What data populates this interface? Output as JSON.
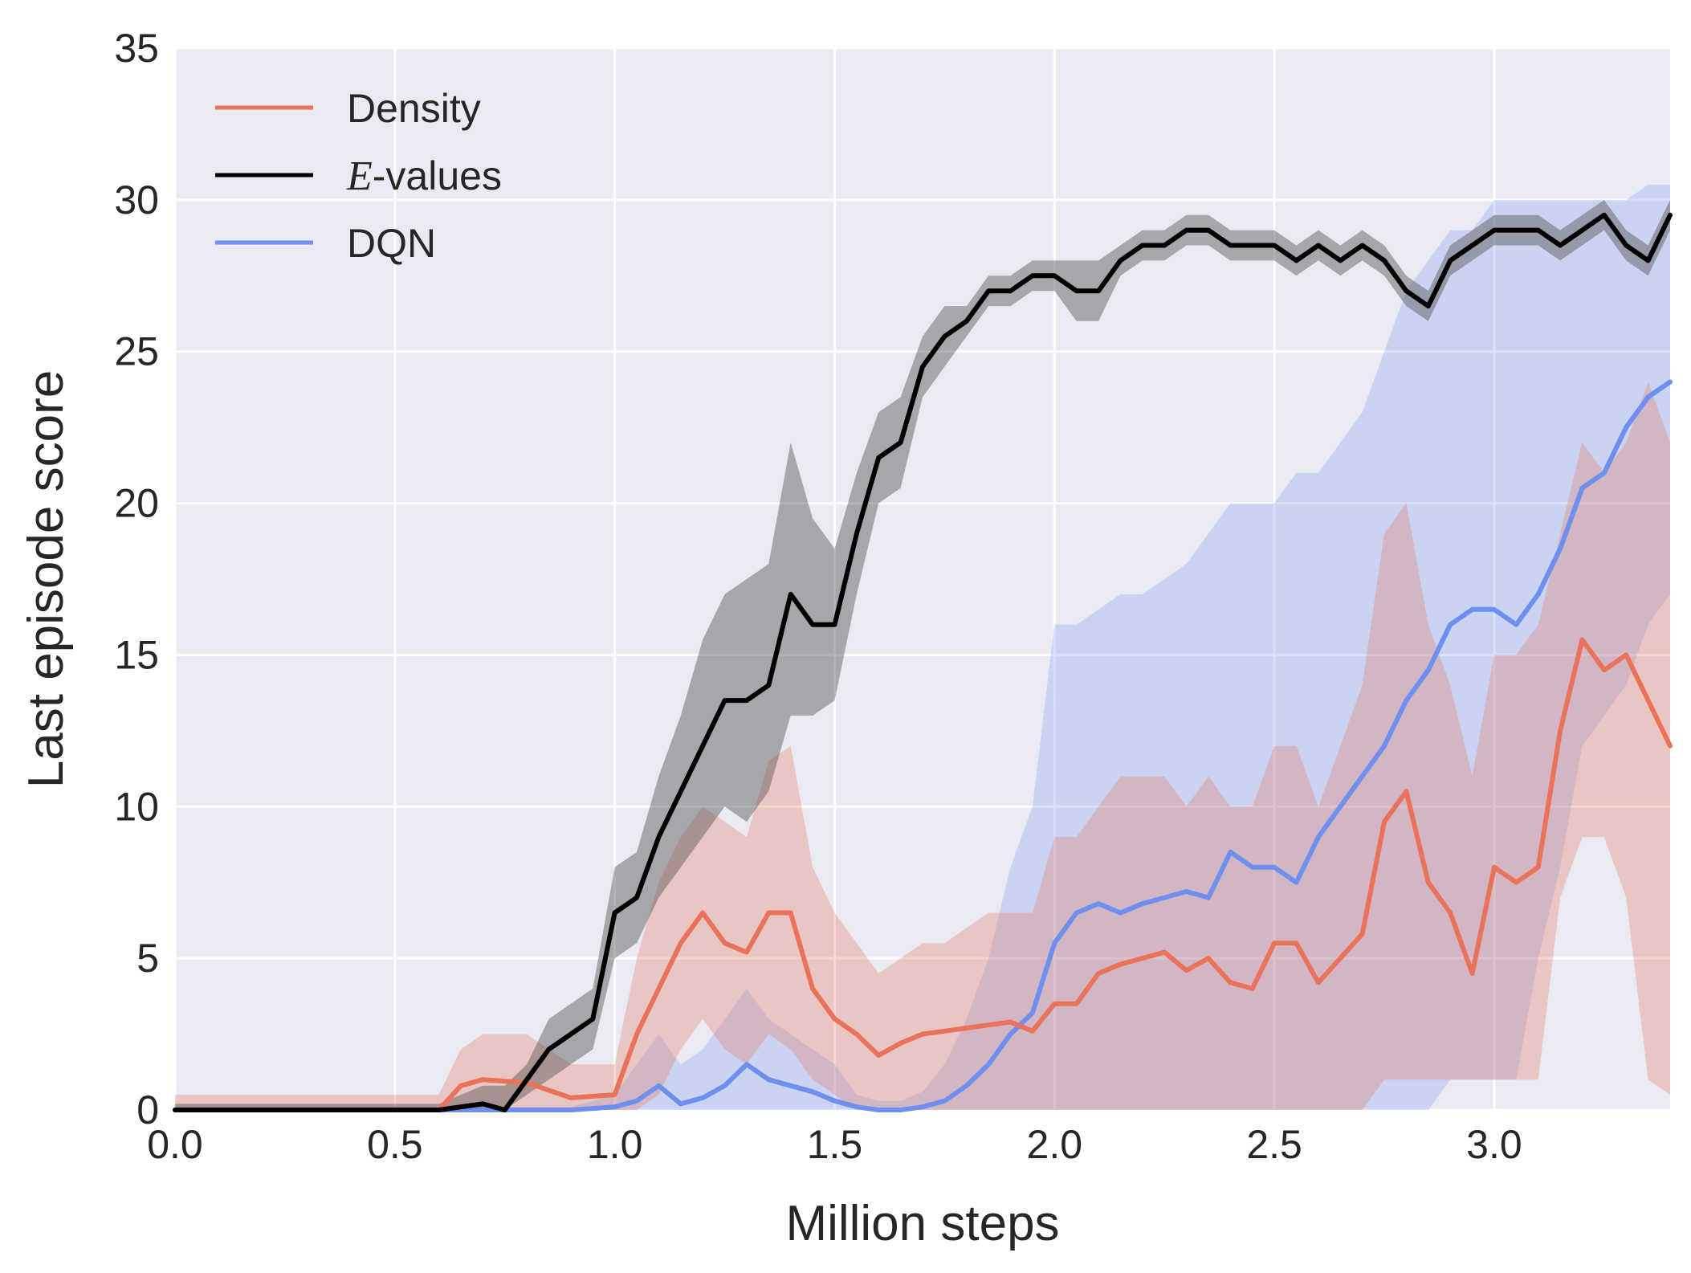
{
  "chart_data": {
    "type": "line",
    "title": "",
    "xlabel": "Million steps",
    "ylabel": "Last episode score",
    "xlim": [
      0.0,
      3.4
    ],
    "ylim": [
      0,
      35
    ],
    "xticks": [
      0.0,
      0.5,
      1.0,
      1.5,
      2.0,
      2.5,
      3.0
    ],
    "xtick_labels": [
      "0.0",
      "0.5",
      "1.0",
      "1.5",
      "2.0",
      "2.5",
      "3.0"
    ],
    "yticks": [
      0,
      5,
      10,
      15,
      20,
      25,
      30,
      35
    ],
    "ytick_labels": [
      "0",
      "5",
      "10",
      "15",
      "20",
      "25",
      "30",
      "35"
    ],
    "grid": true,
    "legend_position": "top-left",
    "series": [
      {
        "name": "Density",
        "label": "Density",
        "color": "#e8735a",
        "band_color": "#e8735a",
        "band_opacity": 0.3,
        "x": [
          0.0,
          0.6,
          0.65,
          0.7,
          0.8,
          0.9,
          1.0,
          1.05,
          1.1,
          1.15,
          1.2,
          1.25,
          1.3,
          1.35,
          1.4,
          1.45,
          1.5,
          1.55,
          1.6,
          1.65,
          1.7,
          1.75,
          1.8,
          1.85,
          1.9,
          1.95,
          2.0,
          2.05,
          2.1,
          2.15,
          2.2,
          2.25,
          2.3,
          2.35,
          2.4,
          2.45,
          2.5,
          2.55,
          2.6,
          2.65,
          2.7,
          2.75,
          2.8,
          2.85,
          2.9,
          2.95,
          3.0,
          3.05,
          3.1,
          3.15,
          3.2,
          3.25,
          3.3,
          3.35,
          3.4
        ],
        "y": [
          0.0,
          0.0,
          0.8,
          1.0,
          0.9,
          0.4,
          0.5,
          2.5,
          4.0,
          5.5,
          6.5,
          5.5,
          5.2,
          6.5,
          6.5,
          4.0,
          3.0,
          2.5,
          1.8,
          2.2,
          2.5,
          2.6,
          2.7,
          2.8,
          2.9,
          2.6,
          3.5,
          3.5,
          4.5,
          4.8,
          5.0,
          5.2,
          4.6,
          5.0,
          4.2,
          4.0,
          5.5,
          5.5,
          4.2,
          5.0,
          5.8,
          9.5,
          10.5,
          7.5,
          6.5,
          4.5,
          8.0,
          7.5,
          8.0,
          12.5,
          15.5,
          14.5,
          15.0,
          13.5,
          12.0
        ],
        "lower": [
          0.0,
          0.0,
          0.0,
          0.0,
          0.0,
          0.0,
          0.0,
          0.0,
          0.5,
          2.0,
          3.0,
          2.0,
          1.5,
          2.5,
          2.0,
          1.0,
          0.5,
          0.0,
          0.0,
          0.0,
          0.0,
          0.0,
          0.0,
          0.0,
          0.0,
          0.0,
          0.0,
          0.0,
          0.0,
          0.0,
          0.0,
          0.0,
          0.0,
          0.0,
          0.0,
          0.0,
          0.0,
          0.0,
          0.0,
          0.0,
          0.0,
          1.0,
          1.0,
          1.0,
          1.0,
          1.0,
          1.0,
          1.0,
          1.0,
          7.0,
          9.0,
          9.0,
          7.0,
          1.0,
          0.5
        ],
        "upper": [
          0.5,
          0.5,
          2.0,
          2.5,
          2.5,
          1.5,
          1.5,
          5.0,
          7.5,
          9.0,
          10.0,
          9.5,
          9.0,
          11.5,
          12.0,
          8.0,
          6.5,
          5.5,
          4.5,
          5.0,
          5.5,
          5.5,
          6.0,
          6.5,
          6.5,
          6.5,
          9.0,
          9.0,
          10.0,
          11.0,
          11.0,
          11.0,
          10.0,
          11.0,
          10.0,
          10.0,
          12.0,
          12.0,
          10.0,
          12.0,
          14.0,
          19.0,
          20.0,
          16.0,
          14.0,
          11.0,
          15.0,
          15.0,
          16.0,
          19.0,
          22.0,
          21.0,
          22.0,
          24.0,
          22.0
        ]
      },
      {
        "name": "E-values",
        "label": "-values",
        "label_math": "E",
        "color": "#000000",
        "band_color": "#555555",
        "band_opacity": 0.45,
        "x": [
          0.0,
          0.6,
          0.7,
          0.75,
          0.8,
          0.85,
          0.9,
          0.95,
          1.0,
          1.05,
          1.1,
          1.15,
          1.2,
          1.25,
          1.3,
          1.35,
          1.4,
          1.45,
          1.5,
          1.55,
          1.6,
          1.65,
          1.7,
          1.75,
          1.8,
          1.85,
          1.9,
          1.95,
          2.0,
          2.05,
          2.1,
          2.15,
          2.2,
          2.25,
          2.3,
          2.35,
          2.4,
          2.45,
          2.5,
          2.55,
          2.6,
          2.65,
          2.7,
          2.75,
          2.8,
          2.85,
          2.9,
          2.95,
          3.0,
          3.05,
          3.1,
          3.15,
          3.2,
          3.25,
          3.3,
          3.35,
          3.4
        ],
        "y": [
          0.0,
          0.0,
          0.2,
          0.0,
          1.0,
          2.0,
          2.5,
          3.0,
          6.5,
          7.0,
          9.0,
          10.5,
          12.0,
          13.5,
          13.5,
          14.0,
          17.0,
          16.0,
          16.0,
          19.0,
          21.5,
          22.0,
          24.5,
          25.5,
          26.0,
          27.0,
          27.0,
          27.5,
          27.5,
          27.0,
          27.0,
          28.0,
          28.5,
          28.5,
          29.0,
          29.0,
          28.5,
          28.5,
          28.5,
          28.0,
          28.5,
          28.0,
          28.5,
          28.0,
          27.0,
          26.5,
          28.0,
          28.5,
          29.0,
          29.0,
          29.0,
          28.5,
          29.0,
          29.5,
          28.5,
          28.0,
          29.5
        ],
        "lower": [
          0.0,
          0.0,
          0.0,
          0.0,
          0.5,
          1.0,
          1.5,
          2.0,
          5.0,
          5.5,
          7.0,
          8.0,
          9.0,
          10.0,
          9.5,
          10.5,
          13.0,
          13.0,
          13.5,
          17.0,
          20.0,
          20.5,
          23.5,
          24.5,
          25.5,
          26.5,
          26.5,
          27.0,
          27.0,
          26.0,
          26.0,
          27.5,
          28.0,
          28.0,
          28.5,
          28.5,
          28.0,
          28.0,
          28.0,
          27.5,
          28.0,
          27.5,
          28.0,
          27.5,
          26.5,
          26.0,
          27.5,
          28.0,
          28.5,
          28.5,
          28.5,
          28.0,
          28.5,
          29.0,
          28.0,
          27.5,
          29.0
        ],
        "upper": [
          0.2,
          0.2,
          0.8,
          0.8,
          1.5,
          3.0,
          3.5,
          4.0,
          8.0,
          8.5,
          11.0,
          13.0,
          15.5,
          17.0,
          17.5,
          18.0,
          22.0,
          19.5,
          18.5,
          21.0,
          23.0,
          23.5,
          25.5,
          26.5,
          26.5,
          27.5,
          27.5,
          28.0,
          28.0,
          28.0,
          28.0,
          28.5,
          29.0,
          29.0,
          29.5,
          29.5,
          29.0,
          29.0,
          29.0,
          28.5,
          29.0,
          28.5,
          29.0,
          28.5,
          27.5,
          27.0,
          28.5,
          29.0,
          29.5,
          29.5,
          29.5,
          29.0,
          29.5,
          30.0,
          29.0,
          28.5,
          30.0
        ]
      },
      {
        "name": "DQN",
        "label": "DQN",
        "color": "#6f8fef",
        "band_color": "#8eaaf2",
        "band_opacity": 0.35,
        "x": [
          0.0,
          0.9,
          1.0,
          1.05,
          1.1,
          1.15,
          1.2,
          1.25,
          1.3,
          1.35,
          1.4,
          1.45,
          1.5,
          1.55,
          1.6,
          1.65,
          1.7,
          1.75,
          1.8,
          1.85,
          1.9,
          1.95,
          2.0,
          2.05,
          2.1,
          2.15,
          2.2,
          2.25,
          2.3,
          2.35,
          2.4,
          2.45,
          2.5,
          2.55,
          2.6,
          2.65,
          2.7,
          2.75,
          2.8,
          2.85,
          2.9,
          2.95,
          3.0,
          3.05,
          3.1,
          3.15,
          3.2,
          3.25,
          3.3,
          3.35,
          3.4
        ],
        "y": [
          0.0,
          0.0,
          0.1,
          0.3,
          0.8,
          0.2,
          0.4,
          0.8,
          1.5,
          1.0,
          0.8,
          0.6,
          0.3,
          0.1,
          0.0,
          0.0,
          0.1,
          0.3,
          0.8,
          1.5,
          2.5,
          3.2,
          5.5,
          6.5,
          6.8,
          6.5,
          6.8,
          7.0,
          7.2,
          7.0,
          8.5,
          8.0,
          8.0,
          7.5,
          9.0,
          10.0,
          11.0,
          12.0,
          13.5,
          14.5,
          16.0,
          16.5,
          16.5,
          16.0,
          17.0,
          18.5,
          20.5,
          21.0,
          22.5,
          23.5,
          24.0
        ],
        "lower": [
          0.0,
          0.0,
          0.0,
          0.0,
          0.0,
          0.0,
          0.0,
          0.0,
          0.0,
          0.0,
          0.0,
          0.0,
          0.0,
          0.0,
          0.0,
          0.0,
          0.0,
          0.0,
          0.0,
          0.0,
          0.0,
          0.0,
          0.0,
          0.0,
          0.0,
          0.0,
          0.0,
          0.0,
          0.0,
          0.0,
          0.0,
          0.0,
          0.0,
          0.0,
          0.0,
          0.0,
          0.0,
          0.0,
          0.0,
          0.0,
          1.0,
          1.0,
          1.0,
          1.0,
          5.0,
          8.0,
          12.0,
          13.0,
          14.0,
          16.0,
          17.0
        ],
        "upper": [
          0.1,
          0.1,
          0.5,
          1.5,
          2.5,
          1.5,
          2.0,
          3.0,
          4.0,
          3.0,
          2.5,
          2.0,
          1.5,
          0.5,
          0.3,
          0.3,
          0.6,
          1.5,
          3.0,
          5.0,
          8.0,
          10.0,
          16.0,
          16.0,
          16.5,
          17.0,
          17.0,
          17.5,
          18.0,
          19.0,
          20.0,
          20.0,
          20.0,
          21.0,
          21.0,
          22.0,
          23.0,
          25.0,
          27.0,
          28.0,
          29.0,
          29.0,
          30.0,
          30.0,
          30.0,
          30.0,
          30.0,
          30.0,
          30.0,
          30.5,
          30.5
        ]
      }
    ]
  }
}
